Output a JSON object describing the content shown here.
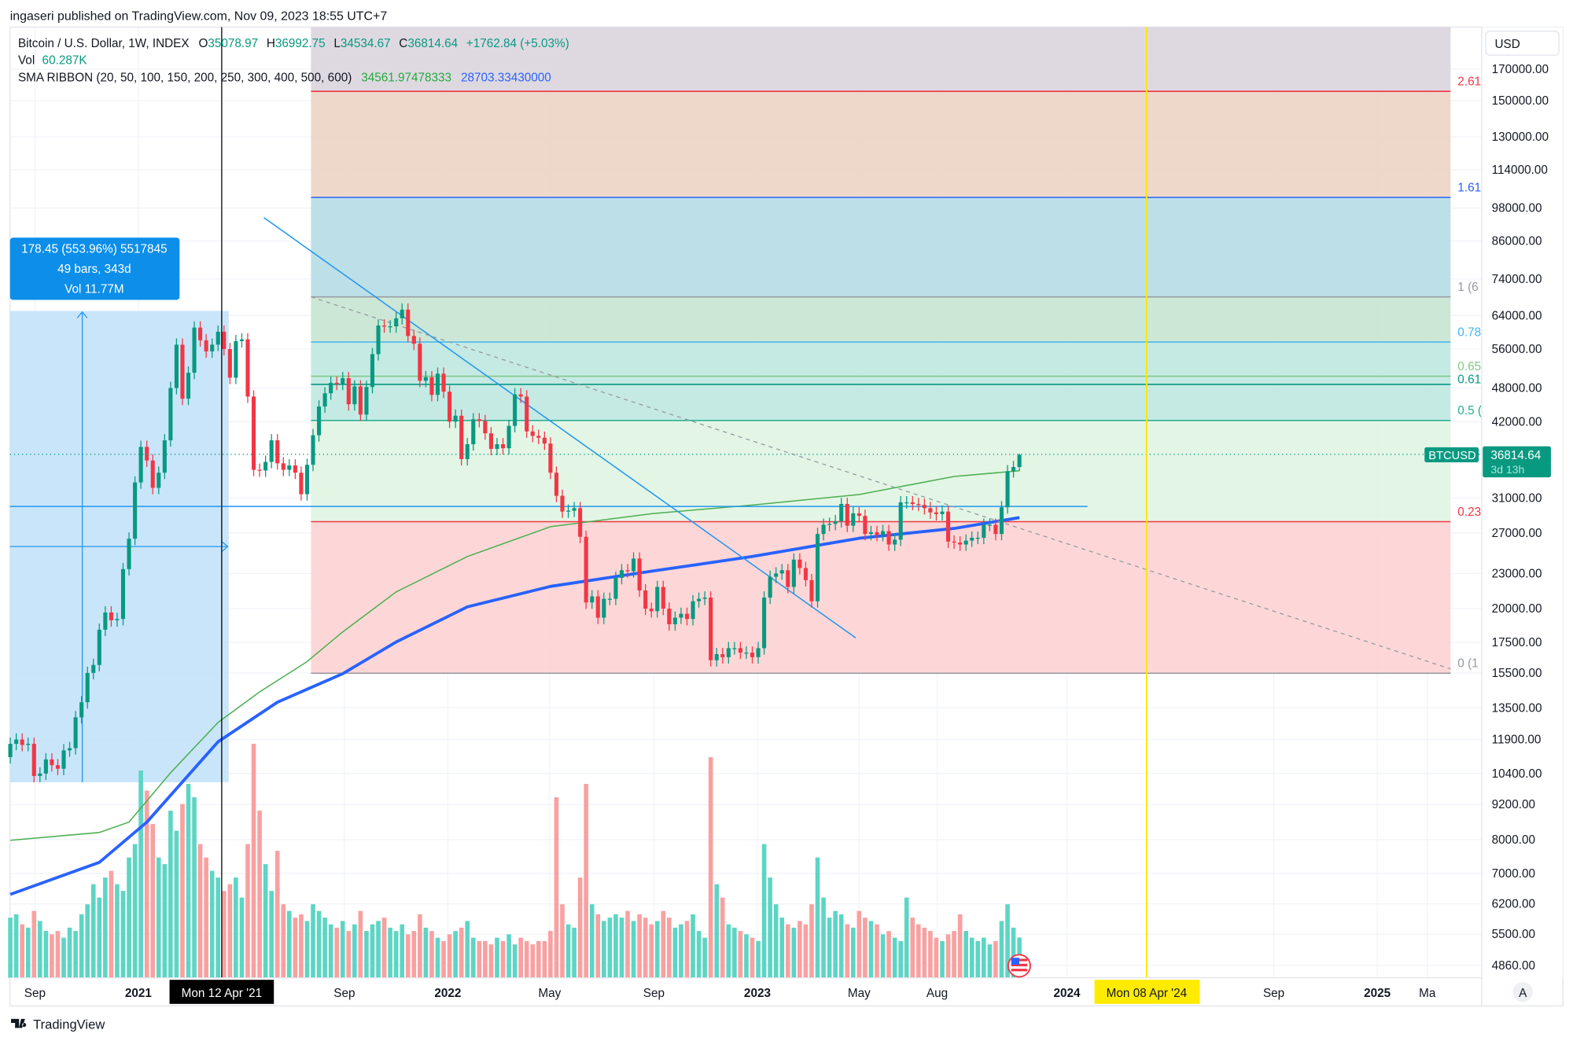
{
  "publish_line": "ingaseri published on TradingView.com, Nov 09, 2023 18:55 UTC+7",
  "legend": {
    "symbol": "Bitcoin / U.S. Dollar, 1W, INDEX",
    "o_label": "O",
    "o_value": "35078.97",
    "h_label": "H",
    "h_value": "36992.75",
    "l_label": "L",
    "l_value": "34534.67",
    "c_label": "C",
    "c_value": "36814.64",
    "change": "+1762.84 (+5.03%)",
    "vol_label": "Vol",
    "vol_value": "60.287K",
    "sma_label": "SMA RIBBON (20, 50, 100, 150, 200, 250, 300, 400, 500, 600)",
    "sma_value_1": "34561.97478333",
    "sma_value_2": "28703.33430000"
  },
  "currency_button": "USD",
  "auto_scale_button": "A",
  "price_tag": {
    "symbol": "BTCUSD",
    "price": "36814.64",
    "countdown": "3d 13h"
  },
  "measure_box": {
    "line1": "178.45 (553.96%) 5517845",
    "line2": "49 bars, 343d",
    "line3": "Vol 11.77M"
  },
  "crosshair_dates": {
    "black": "Mon 12 Apr '21",
    "yellow": "Mon 08 Apr '24"
  },
  "branding": "TradingView",
  "colors": {
    "up": "#089981",
    "down": "#f23645",
    "vol_up": "#5dd5c4",
    "vol_down": "#f9a0a0",
    "sma_green": "#4caf50",
    "sma_blue": "#2962ff",
    "accent": "#2196f3",
    "yellow": "#ffeb3b"
  },
  "chart_data": {
    "type": "candlestick",
    "interval": "1W",
    "y_scale": "log",
    "grid": true,
    "ylim": [
      4860,
      170000
    ],
    "y_ticks": [
      "170000.00",
      "150000.00",
      "130000.00",
      "114000.00",
      "98000.00",
      "86000.00",
      "74000.00",
      "64000.00",
      "56000.00",
      "48000.00",
      "42000.00",
      "31000.00",
      "27000.00",
      "23000.00",
      "20000.00",
      "17500.00",
      "15500.00",
      "13500.00",
      "11900.00",
      "10400.00",
      "9200.00",
      "8000.00",
      "7000.00",
      "6200.00",
      "5500.00",
      "4860.00"
    ],
    "x_ticks": [
      {
        "label": "Sep",
        "date": "2020-09-01",
        "bold": false
      },
      {
        "label": "2021",
        "date": "2021-01-01",
        "bold": true
      },
      {
        "label": "Sep",
        "date": "2021-09-01",
        "bold": false
      },
      {
        "label": "2022",
        "date": "2022-01-01",
        "bold": true
      },
      {
        "label": "May",
        "date": "2022-05-01",
        "bold": false
      },
      {
        "label": "Sep",
        "date": "2022-09-01",
        "bold": false
      },
      {
        "label": "2023",
        "date": "2023-01-01",
        "bold": true
      },
      {
        "label": "May",
        "date": "2023-05-01",
        "bold": false
      },
      {
        "label": "Aug",
        "date": "2023-08-01",
        "bold": false
      },
      {
        "label": "2024",
        "date": "2024-01-01",
        "bold": true
      },
      {
        "label": "Sep",
        "date": "2024-09-01",
        "bold": false
      },
      {
        "label": "2025",
        "date": "2025-01-01",
        "bold": true
      },
      {
        "label": "Ma",
        "date": "2025-03-01",
        "bold": false
      }
    ],
    "last_bar": {
      "open": 35078.97,
      "high": 36992.75,
      "low": 34534.67,
      "close": 36814.64,
      "change": 1762.84,
      "change_pct": 5.03
    },
    "closes": [
      11700,
      11900,
      11650,
      11700,
      10300,
      10400,
      11000,
      10750,
      10600,
      11400,
      11500,
      13000,
      13800,
      15500,
      16000,
      18400,
      19700,
      19100,
      19200,
      23400,
      26400,
      33000,
      38000,
      36000,
      32300,
      34300,
      39000,
      48000,
      57000,
      46000,
      51000,
      61000,
      58000,
      55500,
      57000,
      60000,
      56000,
      50000,
      57800,
      58200,
      46400,
      34700,
      34600,
      35800,
      39000,
      35600,
      34700,
      35300,
      34300,
      31500,
      35400,
      39800,
      44600,
      47000,
      49000,
      48800,
      49900,
      45000,
      48300,
      43200,
      48200,
      54900,
      61500,
      61300,
      61300,
      63300,
      65500,
      59000,
      57200,
      49400,
      50100,
      46700,
      50800,
      47300,
      42000,
      43000,
      36200,
      38400,
      42400,
      42100,
      40100,
      37700,
      38400,
      37800,
      41300,
      46800,
      46400,
      40400,
      39700,
      39400,
      38500,
      34300,
      31300,
      29400,
      29500,
      29800,
      26600,
      20500,
      21000,
      19300,
      20800,
      20800,
      22600,
      23300,
      23200,
      24400,
      21500,
      20000,
      19800,
      21800,
      20000,
      18800,
      19300,
      19600,
      19200,
      20600,
      20800,
      20900,
      16300,
      16700,
      16500,
      17100,
      17100,
      16800,
      16800,
      16500,
      17100,
      20900,
      22700,
      23000,
      23300,
      21800,
      24300,
      23500,
      22400,
      20600,
      26900,
      27900,
      28000,
      28300,
      30300,
      27800,
      29200,
      28900,
      26900,
      27100,
      26800,
      27200,
      25800,
      26300,
      30500,
      30500,
      30300,
      30200,
      29800,
      29300,
      29100,
      29400,
      26100,
      26000,
      25800,
      26200,
      26500,
      26500,
      27900,
      27900,
      26900,
      29900,
      34500,
      35078.97,
      36814.64
    ],
    "volumes_k": [
      90,
      95,
      80,
      75,
      100,
      85,
      70,
      65,
      70,
      60,
      75,
      70,
      95,
      110,
      140,
      120,
      150,
      160,
      140,
      130,
      180,
      200,
      310,
      280,
      230,
      180,
      170,
      250,
      220,
      260,
      290,
      270,
      200,
      180,
      160,
      150,
      130,
      140,
      150,
      120,
      200,
      350,
      250,
      170,
      130,
      190,
      110,
      100,
      90,
      95,
      85,
      110,
      100,
      90,
      80,
      75,
      85,
      70,
      80,
      100,
      70,
      80,
      85,
      90,
      75,
      70,
      80,
      65,
      70,
      95,
      75,
      70,
      60,
      55,
      65,
      70,
      75,
      85,
      60,
      55,
      55,
      50,
      60,
      55,
      65,
      50,
      60,
      55,
      50,
      55,
      55,
      70,
      270,
      110,
      80,
      75,
      150,
      290,
      110,
      95,
      85,
      90,
      95,
      90,
      100,
      85,
      95,
      90,
      80,
      85,
      100,
      90,
      75,
      80,
      85,
      95,
      70,
      60,
      330,
      140,
      120,
      80,
      75,
      70,
      65,
      60,
      55,
      200,
      150,
      110,
      90,
      80,
      75,
      85,
      80,
      110,
      180,
      120,
      90,
      100,
      95,
      80,
      75,
      100,
      90,
      85,
      80,
      65,
      70,
      60,
      55,
      120,
      90,
      80,
      75,
      70,
      60,
      55,
      65,
      70,
      95,
      70,
      60,
      55,
      60,
      50,
      55,
      85,
      110,
      75,
      60.287
    ],
    "sma_ribbon": [
      {
        "color": "#4caf50",
        "points": [
          [
            "2020-08-03",
            7980
          ],
          [
            "2020-11-16",
            8230
          ],
          [
            "2020-12-21",
            8580
          ],
          [
            "2021-02-08",
            10430
          ],
          [
            "2021-04-05",
            12740
          ],
          [
            "2021-05-24",
            14380
          ],
          [
            "2021-07-19",
            16210
          ],
          [
            "2021-08-30",
            18240
          ],
          [
            "2021-11-01",
            21380
          ],
          [
            "2022-01-24",
            24600
          ],
          [
            "2022-05-02",
            27680
          ],
          [
            "2022-08-29",
            29160
          ],
          [
            "2022-12-26",
            30170
          ],
          [
            "2023-05-01",
            31450
          ],
          [
            "2023-08-21",
            33790
          ],
          [
            "2023-11-06",
            34562
          ]
        ]
      },
      {
        "color": "#2962ff",
        "points": [
          [
            "2020-08-03",
            6440
          ],
          [
            "2020-11-16",
            7310
          ],
          [
            "2021-01-11",
            8580
          ],
          [
            "2021-04-05",
            11800
          ],
          [
            "2021-06-14",
            13800
          ],
          [
            "2021-08-30",
            15450
          ],
          [
            "2021-11-01",
            17530
          ],
          [
            "2022-01-24",
            20150
          ],
          [
            "2022-05-02",
            21850
          ],
          [
            "2022-08-29",
            23200
          ],
          [
            "2022-12-26",
            24600
          ],
          [
            "2023-05-01",
            26450
          ],
          [
            "2023-08-21",
            27500
          ],
          [
            "2023-11-06",
            28703
          ]
        ]
      }
    ],
    "fib_levels": [
      {
        "label": "0 (1",
        "price": 15480,
        "color": "#9598a1",
        "band": "#fdd3d3"
      },
      {
        "label": "0.23",
        "price": 28240,
        "color": "#f23645",
        "band": "#e0f4e2"
      },
      {
        "label": "0.5 (",
        "price": 42200,
        "color": "#22ab94",
        "band": "#bfe8e0"
      },
      {
        "label": "0.61",
        "price": 48700,
        "color": "#089981",
        "band": "#bfe8e0"
      },
      {
        "label": "0.65",
        "price": 50300,
        "color": "#81c784",
        "band": "#bfe8e0"
      },
      {
        "label": "0.78",
        "price": 57600,
        "color": "#42b5ef",
        "band": "#c6e4d2"
      },
      {
        "label": "1 (6",
        "price": 68900,
        "color": "#9598a1",
        "band": "#b6dde6"
      },
      {
        "label": "1.61",
        "price": 102200,
        "color": "#2962ff",
        "band": "#ebd4c3"
      },
      {
        "label": "2.61",
        "price": 155700,
        "color": "#f23645",
        "band": "#dad5de"
      }
    ]
  }
}
